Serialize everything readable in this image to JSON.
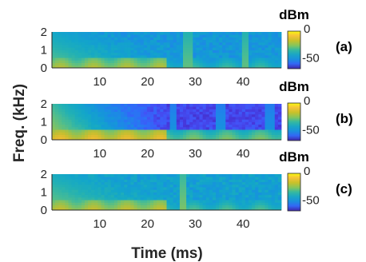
{
  "chart_data": [
    {
      "type": "heatmap",
      "panel_label": "(a)",
      "x_ticks": [
        10,
        20,
        30,
        40
      ],
      "y_ticks": [
        0,
        1,
        2
      ],
      "xlim": [
        0,
        48
      ],
      "ylim": [
        0,
        2
      ],
      "colorbar": {
        "unit": "dBm",
        "ticks": [
          0,
          -50
        ],
        "range": [
          -70,
          0
        ]
      },
      "features": {
        "low_band_level": -20,
        "burst_times_ms": [
          28.5,
          40.5
        ],
        "noise_floor": -45
      }
    },
    {
      "type": "heatmap",
      "panel_label": "(b)",
      "x_ticks": [
        10,
        20,
        30,
        40
      ],
      "y_ticks": [
        0,
        1,
        2
      ],
      "xlim": [
        0,
        48
      ],
      "ylim": [
        0,
        2
      ],
      "colorbar": {
        "unit": "dBm",
        "ticks": [
          0,
          -50
        ],
        "range": [
          -70,
          0
        ]
      },
      "features": {
        "low_band_level": -12,
        "burst_times_ms": [
          25.5,
          35.5,
          45.5
        ],
        "noise_floor": -62
      }
    },
    {
      "type": "heatmap",
      "panel_label": "(c)",
      "x_ticks": [
        10,
        20,
        30,
        40
      ],
      "y_ticks": [
        0,
        1,
        2
      ],
      "xlim": [
        0,
        48
      ],
      "ylim": [
        0,
        2
      ],
      "colorbar": {
        "unit": "dBm",
        "ticks": [
          0,
          -50
        ],
        "range": [
          -70,
          0
        ]
      },
      "features": {
        "low_band_level": -18,
        "burst_times_ms": [
          27.5
        ],
        "noise_floor": -42
      }
    }
  ],
  "labels": {
    "xlabel": "Time (ms)",
    "ylabel": "Freq. (kHz)"
  }
}
